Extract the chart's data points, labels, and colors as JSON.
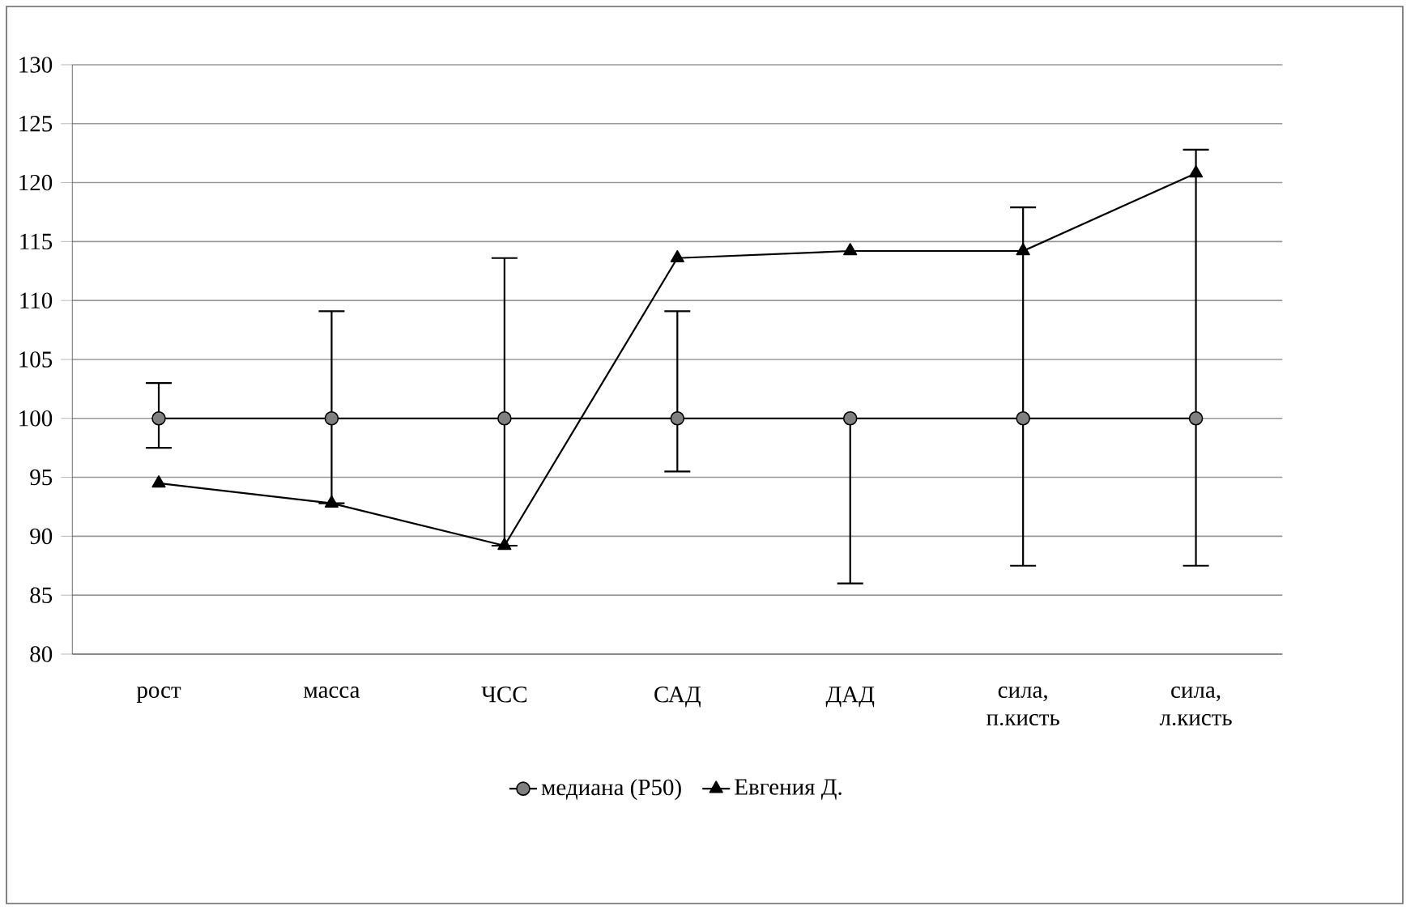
{
  "chart_data": {
    "type": "line",
    "categories": [
      "рост",
      "масса",
      "ЧСС",
      "САД",
      "ДАД",
      "сила, п.кисть",
      "сила, л.кисть"
    ],
    "ylim": [
      80,
      130
    ],
    "yticks": [
      80,
      85,
      90,
      95,
      100,
      105,
      110,
      115,
      120,
      125,
      130
    ],
    "grid": "y",
    "legend": "bottom",
    "line_style": "solid",
    "series": [
      {
        "name": "медиана (P50)",
        "color": "#808080",
        "marker": "circle",
        "values": [
          100,
          100,
          100,
          100,
          100,
          100,
          100
        ],
        "errors": [
          [
            97.5,
            103
          ],
          [
            92.8,
            109.1
          ],
          [
            89.2,
            113.6
          ],
          [
            95.5,
            109.1
          ],
          [
            86,
            100
          ],
          [
            87.5,
            117.9
          ],
          [
            87.5,
            122.8
          ]
        ]
      },
      {
        "name": "Евгения Д.",
        "color": "#000000",
        "marker": "triangle",
        "values": [
          94.5,
          92.8,
          89.2,
          113.6,
          114.2,
          114.2,
          120.8
        ]
      }
    ]
  }
}
